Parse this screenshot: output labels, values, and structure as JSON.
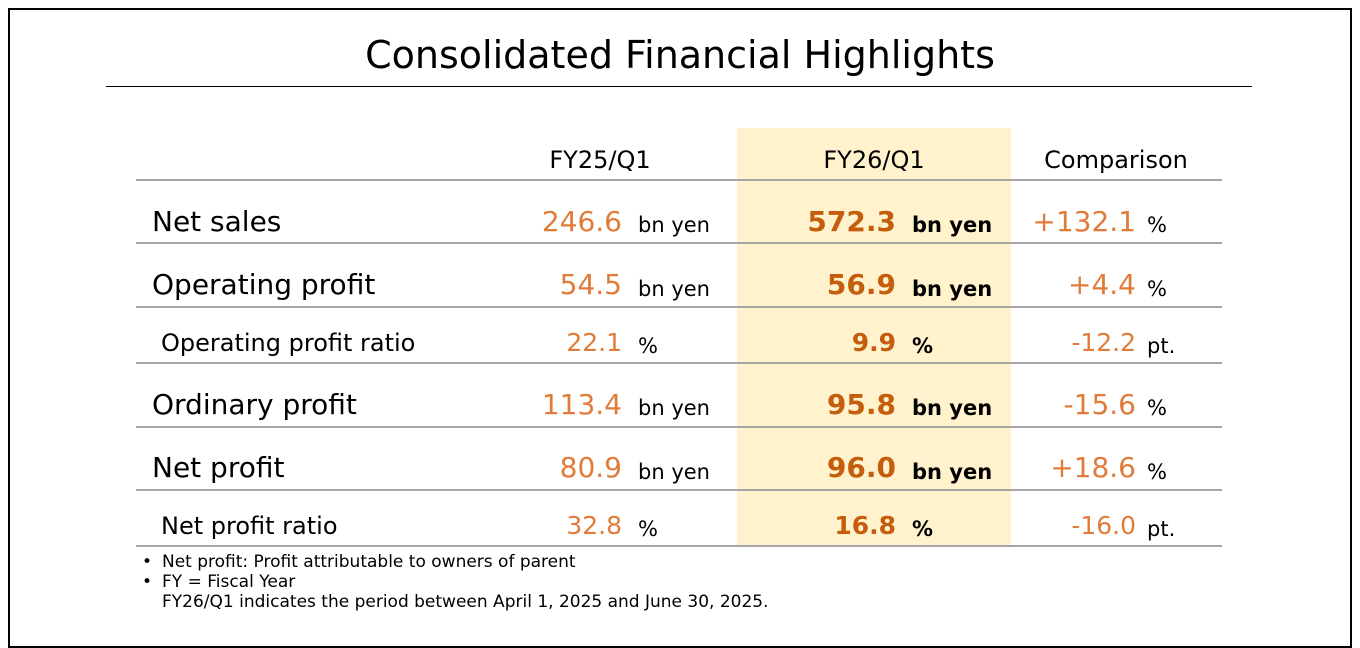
{
  "title": "Consolidated Financial Highlights",
  "columns": [
    "FY25/Q1",
    "FY26/Q1",
    "Comparison"
  ],
  "highlight_color": "#fff2cc",
  "value_color": "#e07b39",
  "highlight_value_color": "#c45e0c",
  "rows": [
    {
      "label": "Net sales",
      "v1": "246.6",
      "u1": "bn yen",
      "v2": "572.3",
      "u2": "bn yen",
      "v3": "+132.1",
      "u3": "%"
    },
    {
      "label": "Operating profit",
      "v1": "54.5",
      "u1": "bn yen",
      "v2": "56.9",
      "u2": "bn yen",
      "v3": "+4.4",
      "u3": "%"
    },
    {
      "label": "Operating profit ratio",
      "v1": "22.1",
      "u1": "%",
      "v2": "9.9",
      "u2": "%",
      "v3": "-12.2",
      "u3": "pt."
    },
    {
      "label": "Ordinary profit",
      "v1": "113.4",
      "u1": "bn yen",
      "v2": "95.8",
      "u2": "bn yen",
      "v3": "-15.6",
      "u3": "%"
    },
    {
      "label": "Net profit",
      "v1": "80.9",
      "u1": "bn yen",
      "v2": "96.0",
      "u2": "bn yen",
      "v3": "+18.6",
      "u3": "%"
    },
    {
      "label": "Net profit ratio",
      "v1": "32.8",
      "u1": "%",
      "v2": "16.8",
      "u2": "%",
      "v3": "-16.0",
      "u3": "pt."
    }
  ],
  "notes": [
    {
      "bullet": "•",
      "text": "Net profit: Profit attributable to owners of parent"
    },
    {
      "bullet": "•",
      "text": "FY = Fiscal Year"
    },
    {
      "bullet": "",
      "text": "FY26/Q1 indicates the period between April 1, 2025 and June 30, 2025."
    }
  ]
}
